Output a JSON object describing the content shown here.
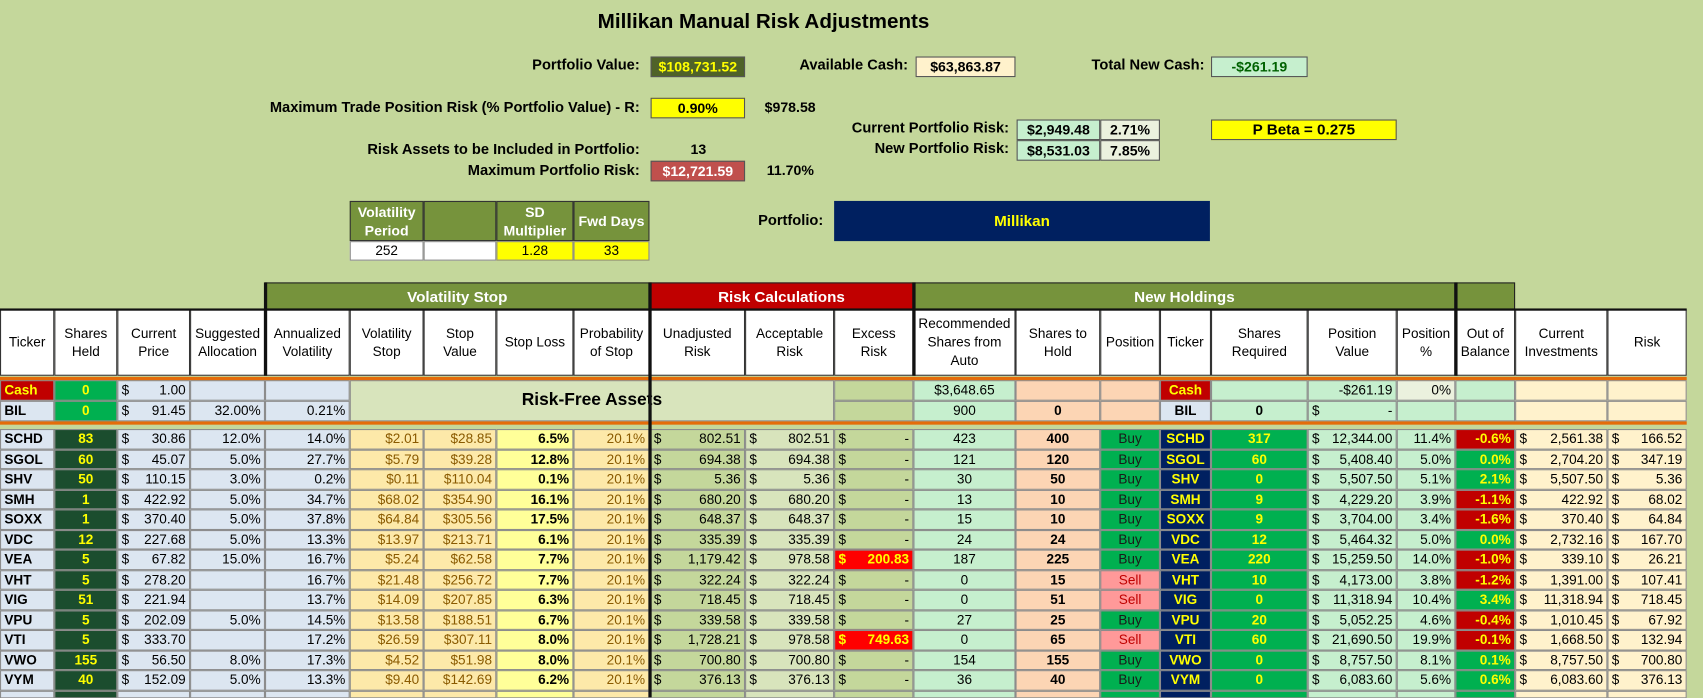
{
  "header": {
    "title": "Millikan Manual Risk Adjustments",
    "portfolio_value": {
      "label": "Portfolio Value:",
      "value": "$108,731.52"
    },
    "available_cash": {
      "label": "Available Cash:",
      "value": "$63,863.87"
    },
    "total_new_cash": {
      "label": "Total New Cash:",
      "value": "-$261.19"
    },
    "max_trade_risk": {
      "label": "Maximum Trade Position Risk (% Portfolio Value) - R:",
      "value": "0.90%",
      "amount": "$978.58"
    },
    "risk_assets": {
      "label": "Risk Assets to be Included in Portfolio:",
      "value": "13"
    },
    "max_portfolio_risk": {
      "label": "Maximum Portfolio Risk:",
      "value": "$12,721.59",
      "percent": "11.70%"
    },
    "current_portfolio_risk": {
      "label": "Current Portfolio Risk:",
      "value": "$2,949.48",
      "percent": "2.71%"
    },
    "new_portfolio_risk": {
      "label": "New Portfolio Risk:",
      "value": "$8,531.03",
      "percent": "7.85%"
    },
    "p_beta": "P Beta = 0.275",
    "portfolio": {
      "label": "Portfolio:",
      "value": "Millikan"
    }
  },
  "params": {
    "headers": [
      "Volatility Period",
      "SD Multiplier",
      "Fwd Days"
    ],
    "values": [
      "252",
      "1.28",
      "33"
    ]
  },
  "table": {
    "groups": [
      "Volatility Stop",
      "Risk Calculations",
      "New Holdings"
    ],
    "columns": [
      "Ticker",
      "Shares Held",
      "Current Price",
      "Suggested Allocation",
      "Annualized Volatility",
      "Volatility Stop",
      "Stop Value",
      "Stop Loss",
      "Probability of Stop",
      "Unadjusted Risk",
      "Acceptable Risk",
      "Excess Risk",
      "Recommended Shares from Auto",
      "Shares to Hold",
      "Position",
      "Ticker",
      "Shares Required",
      "Position Value",
      "Position %",
      "Out of Balance",
      "Current Investments",
      "Risk"
    ],
    "risk_free": {
      "label": "Risk-Free Assets",
      "rows": [
        [
          "Cash",
          "0",
          "$ 1.00",
          null,
          null,
          null,
          null,
          null,
          null,
          null,
          null,
          null,
          "$3,648.65",
          null,
          null,
          "Cash",
          null,
          "-$261.19",
          "0%",
          null,
          null,
          null
        ],
        [
          "BIL",
          "0",
          "$ 91.45",
          "32.00%",
          "0.21%",
          null,
          null,
          null,
          null,
          null,
          null,
          null,
          "900",
          "0",
          null,
          "BIL",
          "0",
          "$ -",
          null,
          null,
          null,
          null
        ]
      ]
    },
    "rows": [
      [
        "SCHD",
        "83",
        "$ 30.86",
        "12.0%",
        "14.0%",
        "$2.01",
        "$28.85",
        "6.5%",
        "20.1%",
        "$ 802.51",
        "$ 802.51",
        "$ -",
        "423",
        "400",
        "Buy",
        "SCHD",
        "317",
        "$ 12,344.00",
        "11.4%",
        "-0.6%",
        "$ 2,561.38",
        "$ 166.52"
      ],
      [
        "SGOL",
        "60",
        "$ 45.07",
        "5.0%",
        "27.7%",
        "$5.79",
        "$39.28",
        "12.8%",
        "20.1%",
        "$ 694.38",
        "$ 694.38",
        "$ -",
        "121",
        "120",
        "Buy",
        "SGOL",
        "60",
        "$ 5,408.40",
        "5.0%",
        "0.0%",
        "$ 2,704.20",
        "$ 347.19"
      ],
      [
        "SHV",
        "50",
        "$ 110.15",
        "3.0%",
        "0.2%",
        "$0.11",
        "$110.04",
        "0.1%",
        "20.1%",
        "$ 5.36",
        "$ 5.36",
        "$ -",
        "30",
        "50",
        "Buy",
        "SHV",
        "0",
        "$ 5,507.50",
        "5.1%",
        "2.1%",
        "$ 5,507.50",
        "$ 5.36"
      ],
      [
        "SMH",
        "1",
        "$ 422.92",
        "5.0%",
        "34.7%",
        "$68.02",
        "$354.90",
        "16.1%",
        "20.1%",
        "$ 680.20",
        "$ 680.20",
        "$ -",
        "13",
        "10",
        "Buy",
        "SMH",
        "9",
        "$ 4,229.20",
        "3.9%",
        "-1.1%",
        "$ 422.92",
        "$ 68.02"
      ],
      [
        "SOXX",
        "1",
        "$ 370.40",
        "5.0%",
        "37.8%",
        "$64.84",
        "$305.56",
        "17.5%",
        "20.1%",
        "$ 648.37",
        "$ 648.37",
        "$ -",
        "15",
        "10",
        "Buy",
        "SOXX",
        "9",
        "$ 3,704.00",
        "3.4%",
        "-1.6%",
        "$ 370.40",
        "$ 64.84"
      ],
      [
        "VDC",
        "12",
        "$ 227.68",
        "5.0%",
        "13.3%",
        "$13.97",
        "$213.71",
        "6.1%",
        "20.1%",
        "$ 335.39",
        "$ 335.39",
        "$ -",
        "24",
        "24",
        "Buy",
        "VDC",
        "12",
        "$ 5,464.32",
        "5.0%",
        "0.0%",
        "$ 2,732.16",
        "$ 167.70"
      ],
      [
        "VEA",
        "5",
        "$ 67.82",
        "15.0%",
        "16.7%",
        "$5.24",
        "$62.58",
        "7.7%",
        "20.1%",
        "$ 1,179.42",
        "$ 978.58",
        "$ 200.83",
        "187",
        "225",
        "Buy",
        "VEA",
        "220",
        "$ 15,259.50",
        "14.0%",
        "-1.0%",
        "$ 339.10",
        "$ 26.21"
      ],
      [
        "VHT",
        "5",
        "$ 278.20",
        null,
        "16.7%",
        "$21.48",
        "$256.72",
        "7.7%",
        "20.1%",
        "$ 322.24",
        "$ 322.24",
        "$ -",
        "0",
        "15",
        "Sell",
        "VHT",
        "10",
        "$ 4,173.00",
        "3.8%",
        "-1.2%",
        "$ 1,391.00",
        "$ 107.41"
      ],
      [
        "VIG",
        "51",
        "$ 221.94",
        null,
        "13.7%",
        "$14.09",
        "$207.85",
        "6.3%",
        "20.1%",
        "$ 718.45",
        "$ 718.45",
        "$ -",
        "0",
        "51",
        "Sell",
        "VIG",
        "0",
        "$ 11,318.94",
        "10.4%",
        "3.4%",
        "$ 11,318.94",
        "$ 718.45"
      ],
      [
        "VPU",
        "5",
        "$ 202.09",
        "5.0%",
        "14.5%",
        "$13.58",
        "$188.51",
        "6.7%",
        "20.1%",
        "$ 339.58",
        "$ 339.58",
        "$ -",
        "27",
        "25",
        "Buy",
        "VPU",
        "20",
        "$ 5,052.25",
        "4.6%",
        "-0.4%",
        "$ 1,010.45",
        "$ 67.92"
      ],
      [
        "VTI",
        "5",
        "$ 333.70",
        null,
        "17.2%",
        "$26.59",
        "$307.11",
        "8.0%",
        "20.1%",
        "$ 1,728.21",
        "$ 978.58",
        "$ 749.63",
        "0",
        "65",
        "Sell",
        "VTI",
        "60",
        "$ 21,690.50",
        "19.9%",
        "-0.1%",
        "$ 1,668.50",
        "$ 132.94"
      ],
      [
        "VWO",
        "155",
        "$ 56.50",
        "8.0%",
        "17.3%",
        "$4.52",
        "$51.98",
        "8.0%",
        "20.1%",
        "$ 700.80",
        "$ 700.80",
        "$ -",
        "154",
        "155",
        "Buy",
        "VWO",
        "0",
        "$ 8,757.50",
        "8.1%",
        "0.1%",
        "$ 8,757.50",
        "$ 700.80"
      ],
      [
        "VYM",
        "40",
        "$ 152.09",
        "5.0%",
        "13.3%",
        "$9.40",
        "$142.69",
        "6.2%",
        "20.1%",
        "$ 376.13",
        "$ 376.13",
        "$ -",
        "36",
        "40",
        "Buy",
        "VYM",
        "0",
        "$ 6,083.60",
        "5.6%",
        "0.6%",
        "$ 6,083.60",
        "$ 376.13"
      ]
    ]
  }
}
